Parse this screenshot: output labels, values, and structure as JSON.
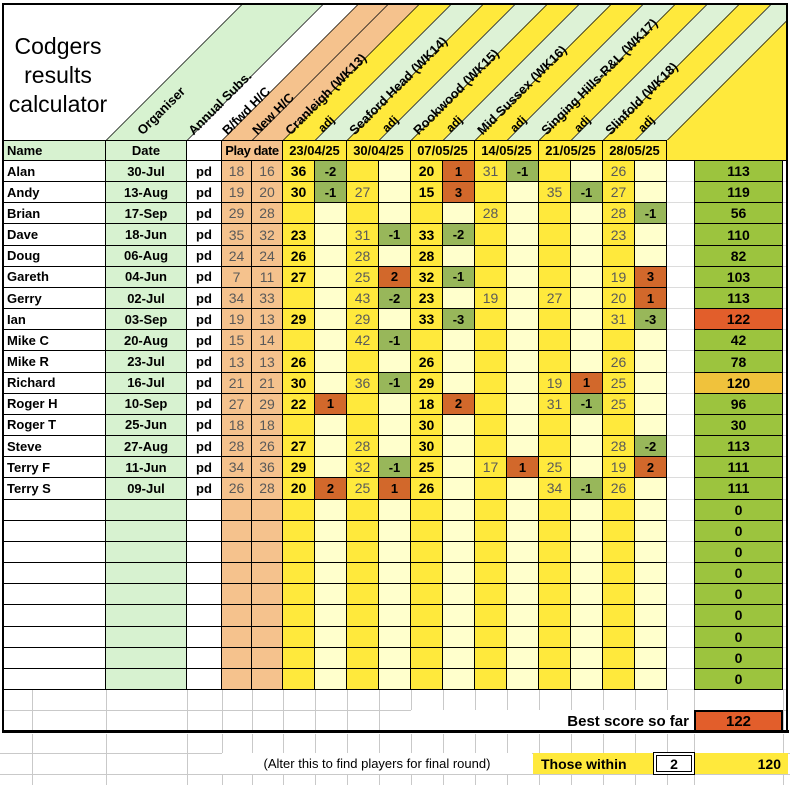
{
  "title": {
    "line1": "Codgers",
    "line2": "results",
    "line3": "calculator"
  },
  "diagonal_headers": {
    "organiser": "Organiser",
    "annual_subs": "Annual Subs.",
    "bfwd_hc": "B/fwd H/C",
    "new_hc": "New H/C",
    "adj": "adj",
    "weeks": [
      "Cranleigh (WK13)",
      "Seaford Head (WK14)",
      "Rookwood (WK15)",
      "Mid Sussex (WK16)",
      "Singing Hills-R&L (WK17)",
      "Slinfold (WK18)"
    ]
  },
  "table_header": {
    "name": "Name",
    "date": "Date",
    "play_date": "Play date",
    "week_dates": [
      "23/04/25",
      "30/04/25",
      "07/05/25",
      "14/05/25",
      "21/05/25",
      "28/05/25"
    ]
  },
  "pd_label": "pd",
  "players": [
    {
      "name": "Alan",
      "date": "30-Jul",
      "bfwd_hc": "18",
      "new_hc": "16",
      "weeks": [
        [
          "36",
          "-2"
        ],
        [
          "",
          ""
        ],
        [
          "20",
          "1"
        ],
        [
          "31",
          "-1"
        ],
        [
          "",
          ""
        ],
        [
          "26",
          ""
        ]
      ],
      "total": "113",
      "total_highlight": ""
    },
    {
      "name": "Andy",
      "date": "13-Aug",
      "bfwd_hc": "19",
      "new_hc": "20",
      "weeks": [
        [
          "30",
          "-1"
        ],
        [
          "27",
          ""
        ],
        [
          "15",
          "3"
        ],
        [
          "",
          ""
        ],
        [
          "35",
          "-1"
        ],
        [
          "27",
          ""
        ]
      ],
      "total": "119",
      "total_highlight": ""
    },
    {
      "name": "Brian",
      "date": "17-Sep",
      "bfwd_hc": "29",
      "new_hc": "28",
      "weeks": [
        [
          "",
          ""
        ],
        [
          "",
          ""
        ],
        [
          "",
          ""
        ],
        [
          "28",
          ""
        ],
        [
          "",
          ""
        ],
        [
          "28",
          "-1"
        ]
      ],
      "total": "56",
      "total_highlight": ""
    },
    {
      "name": "Dave",
      "date": "18-Jun",
      "bfwd_hc": "35",
      "new_hc": "32",
      "weeks": [
        [
          "23",
          ""
        ],
        [
          "31",
          "-1"
        ],
        [
          "33",
          "-2"
        ],
        [
          "",
          ""
        ],
        [
          "",
          ""
        ],
        [
          "23",
          ""
        ]
      ],
      "total": "110",
      "total_highlight": ""
    },
    {
      "name": "Doug",
      "date": "06-Aug",
      "bfwd_hc": "24",
      "new_hc": "24",
      "weeks": [
        [
          "26",
          ""
        ],
        [
          "28",
          ""
        ],
        [
          "28",
          ""
        ],
        [
          "",
          ""
        ],
        [
          "",
          ""
        ],
        [
          "",
          ""
        ]
      ],
      "total": "82",
      "total_highlight": ""
    },
    {
      "name": "Gareth",
      "date": "04-Jun",
      "bfwd_hc": "7",
      "new_hc": "11",
      "weeks": [
        [
          "27",
          ""
        ],
        [
          "25",
          "2"
        ],
        [
          "32",
          "-1"
        ],
        [
          "",
          ""
        ],
        [
          "",
          ""
        ],
        [
          "19",
          "3"
        ]
      ],
      "total": "103",
      "total_highlight": ""
    },
    {
      "name": "Gerry",
      "date": "02-Jul",
      "bfwd_hc": "34",
      "new_hc": "33",
      "weeks": [
        [
          "",
          ""
        ],
        [
          "43",
          "-2"
        ],
        [
          "23",
          ""
        ],
        [
          "19",
          ""
        ],
        [
          "27",
          ""
        ],
        [
          "20",
          "1"
        ]
      ],
      "total": "113",
      "total_highlight": ""
    },
    {
      "name": "Ian",
      "date": "03-Sep",
      "bfwd_hc": "19",
      "new_hc": "13",
      "weeks": [
        [
          "29",
          ""
        ],
        [
          "29",
          ""
        ],
        [
          "33",
          "-3"
        ],
        [
          "",
          ""
        ],
        [
          "",
          ""
        ],
        [
          "31",
          "-3"
        ]
      ],
      "total": "122",
      "total_highlight": "best"
    },
    {
      "name": "Mike C",
      "date": "20-Aug",
      "bfwd_hc": "15",
      "new_hc": "14",
      "weeks": [
        [
          "",
          ""
        ],
        [
          "42",
          "-1"
        ],
        [
          "",
          ""
        ],
        [
          "",
          ""
        ],
        [
          "",
          ""
        ],
        [
          "",
          ""
        ]
      ],
      "total": "42",
      "total_highlight": ""
    },
    {
      "name": "Mike R",
      "date": "23-Jul",
      "bfwd_hc": "13",
      "new_hc": "13",
      "weeks": [
        [
          "26",
          ""
        ],
        [
          "",
          ""
        ],
        [
          "26",
          ""
        ],
        [
          "",
          ""
        ],
        [
          "",
          ""
        ],
        [
          "26",
          ""
        ]
      ],
      "total": "78",
      "total_highlight": ""
    },
    {
      "name": "Richard",
      "date": "16-Jul",
      "bfwd_hc": "21",
      "new_hc": "21",
      "weeks": [
        [
          "30",
          ""
        ],
        [
          "36",
          "-1"
        ],
        [
          "29",
          ""
        ],
        [
          "",
          ""
        ],
        [
          "19",
          "1"
        ],
        [
          "25",
          ""
        ]
      ],
      "total": "120",
      "total_highlight": "within"
    },
    {
      "name": "Roger H",
      "date": "10-Sep",
      "bfwd_hc": "27",
      "new_hc": "29",
      "weeks": [
        [
          "22",
          "1"
        ],
        [
          "",
          ""
        ],
        [
          "18",
          "2"
        ],
        [
          "",
          ""
        ],
        [
          "31",
          "-1"
        ],
        [
          "25",
          ""
        ]
      ],
      "total": "96",
      "total_highlight": ""
    },
    {
      "name": "Roger T",
      "date": "25-Jun",
      "bfwd_hc": "18",
      "new_hc": "18",
      "weeks": [
        [
          "",
          ""
        ],
        [
          "",
          ""
        ],
        [
          "30",
          ""
        ],
        [
          "",
          ""
        ],
        [
          "",
          ""
        ],
        [
          "",
          ""
        ]
      ],
      "total": "30",
      "total_highlight": ""
    },
    {
      "name": "Steve",
      "date": "27-Aug",
      "bfwd_hc": "28",
      "new_hc": "26",
      "weeks": [
        [
          "27",
          ""
        ],
        [
          "28",
          ""
        ],
        [
          "30",
          ""
        ],
        [
          "",
          ""
        ],
        [
          "",
          ""
        ],
        [
          "28",
          "-2"
        ]
      ],
      "total": "113",
      "total_highlight": ""
    },
    {
      "name": "Terry F",
      "date": "11-Jun",
      "bfwd_hc": "34",
      "new_hc": "36",
      "weeks": [
        [
          "29",
          ""
        ],
        [
          "32",
          "-1"
        ],
        [
          "25",
          ""
        ],
        [
          "17",
          "1"
        ],
        [
          "25",
          ""
        ],
        [
          "19",
          "2"
        ]
      ],
      "total": "111",
      "total_highlight": ""
    },
    {
      "name": "Terry S",
      "date": "09-Jul",
      "bfwd_hc": "26",
      "new_hc": "28",
      "weeks": [
        [
          "20",
          "2"
        ],
        [
          "25",
          "1"
        ],
        [
          "26",
          ""
        ],
        [
          "",
          ""
        ],
        [
          "34",
          "-1"
        ],
        [
          "26",
          ""
        ]
      ],
      "total": "111",
      "total_highlight": ""
    }
  ],
  "empty_row_count": 9,
  "empty_row_total": "0",
  "footer": {
    "best_score_label": "Best score so far",
    "best_score_value": "122",
    "alter_note": "(Alter this to find players for final round)",
    "those_within_label": "Those within",
    "those_within_value": "2",
    "those_within_score": "120"
  },
  "colors": {
    "score_yellow": "#ffe93c",
    "banner_yellow": "#ffe93c",
    "adj_cream": "#ffffcc",
    "peach": "#f5c28d",
    "light_green": "#d7f2d0",
    "mint": "#ddf2d6",
    "adj_green": "#98b75a",
    "adj_orange": "#d2682b",
    "total_green": "#9cc43e",
    "best_orange": "#e25e2b",
    "within_gold": "#f0c23c",
    "grid_gray": "#c9c9c9",
    "text_gray": "#595959"
  }
}
